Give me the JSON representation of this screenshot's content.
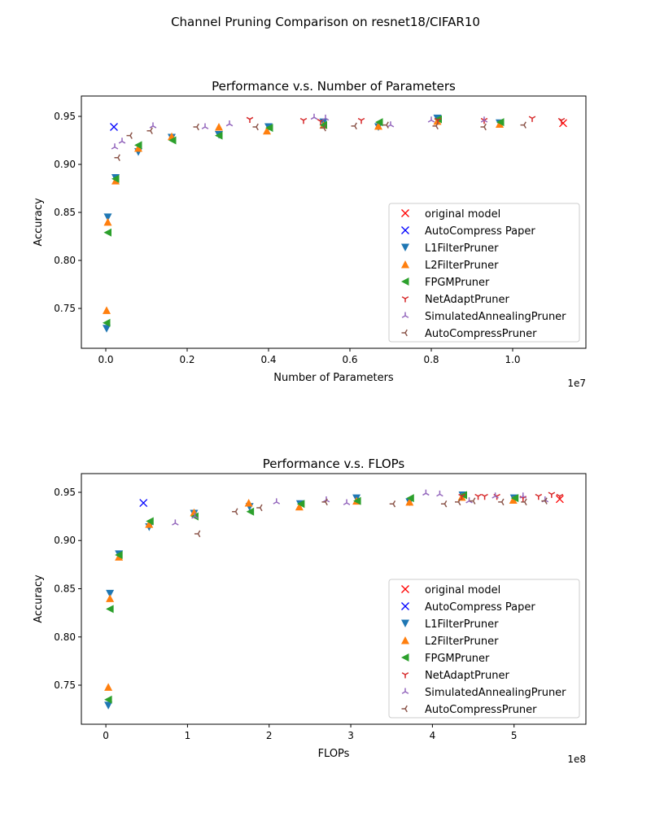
{
  "suptitle": "Channel Pruning Comparison on resnet18/CIFAR10",
  "legend_entries": [
    {
      "name": "original model",
      "marker": "x",
      "color": "#ff0000"
    },
    {
      "name": "AutoCompress Paper",
      "marker": "x",
      "color": "#0000ff"
    },
    {
      "name": "L1FilterPruner",
      "marker": "triangle_down",
      "color": "#1f77b4"
    },
    {
      "name": "L2FilterPruner",
      "marker": "triangle_up",
      "color": "#ff7f0e"
    },
    {
      "name": "FPGMPruner",
      "marker": "triangle_left",
      "color": "#2ca02c"
    },
    {
      "name": "NetAdaptPruner",
      "marker": "tri_down",
      "color": "#d62728"
    },
    {
      "name": "SimulatedAnnealingPruner",
      "marker": "tri_up",
      "color": "#9467bd"
    },
    {
      "name": "AutoCompressPruner",
      "marker": "tri_left",
      "color": "#8c564b"
    }
  ],
  "chart_data": [
    {
      "type": "scatter",
      "title": "Performance v.s. Number of Parameters",
      "xlabel": "Number of Parameters",
      "ylabel": "Accuracy",
      "x_scale_label": "1e7",
      "x_scale": 10000000,
      "xlim": [
        -600000,
        11800000
      ],
      "ylim": [
        0.7085,
        0.9712
      ],
      "xticks": [
        0,
        2000000,
        4000000,
        6000000,
        8000000,
        10000000
      ],
      "xtick_labels": [
        "0.0",
        "0.2",
        "0.4",
        "0.6",
        "0.8",
        "1.0"
      ],
      "yticks": [
        0.75,
        0.8,
        0.85,
        0.9,
        0.95
      ],
      "ytick_labels": [
        "0.75",
        "0.80",
        "0.85",
        "0.90",
        "0.95"
      ],
      "grid": false,
      "legend": "lower-right",
      "series": [
        {
          "name": "original model",
          "x": [
            11240000
          ],
          "y": [
            0.943
          ]
        },
        {
          "name": "AutoCompress Paper",
          "x": [
            200000
          ],
          "y": [
            0.939
          ]
        },
        {
          "name": "L1FilterPruner",
          "x": [
            20000,
            50000,
            240000,
            800000,
            1620000,
            2780000,
            4000000,
            5350000,
            6700000,
            8150000,
            9680000
          ],
          "y": [
            0.729,
            0.845,
            0.886,
            0.913,
            0.928,
            0.931,
            0.939,
            0.944,
            0.939,
            0.948,
            0.943
          ]
        },
        {
          "name": "L2FilterPruner",
          "x": [
            20000,
            50000,
            240000,
            800000,
            1620000,
            2780000,
            3960000,
            5350000,
            6700000,
            8150000,
            9680000
          ],
          "y": [
            0.748,
            0.84,
            0.883,
            0.917,
            0.929,
            0.939,
            0.935,
            0.941,
            0.94,
            0.945,
            0.942
          ]
        },
        {
          "name": "FPGMPruner",
          "x": [
            20000,
            50000,
            240000,
            800000,
            1640000,
            2780000,
            4020000,
            5350000,
            6720000,
            8170000,
            9700000
          ],
          "y": [
            0.735,
            0.829,
            0.885,
            0.92,
            0.925,
            0.93,
            0.938,
            0.941,
            0.944,
            0.947,
            0.944
          ]
        },
        {
          "name": "NetAdaptPruner",
          "x": [
            3540000,
            4860000,
            5280000,
            6280000,
            8160000,
            9300000,
            10480000,
            11200000
          ],
          "y": [
            0.947,
            0.946,
            0.945,
            0.946,
            0.946,
            0.946,
            0.948,
            0.946
          ]
        },
        {
          "name": "SimulatedAnnealingPruner",
          "x": [
            220000,
            400000,
            1160000,
            2440000,
            3040000,
            5120000,
            5400000,
            7000000,
            8000000,
            9300000
          ],
          "y": [
            0.918,
            0.924,
            0.94,
            0.939,
            0.942,
            0.949,
            0.948,
            0.941,
            0.946,
            0.946
          ]
        },
        {
          "name": "AutoCompressPruner",
          "x": [
            300000,
            600000,
            1100000,
            2240000,
            3700000,
            5360000,
            6120000,
            6900000,
            8120000,
            9300000,
            10280000
          ],
          "y": [
            0.907,
            0.93,
            0.935,
            0.939,
            0.939,
            0.938,
            0.94,
            0.941,
            0.94,
            0.939,
            0.941
          ]
        }
      ]
    },
    {
      "type": "scatter",
      "title": "Performance v.s. FLOPs",
      "xlabel": "FLOPs",
      "ylabel": "Accuracy",
      "x_scale_label": "1e8",
      "x_scale": 100000000,
      "xlim": [
        -30000000,
        588000000
      ],
      "ylim": [
        0.7095,
        0.9694
      ],
      "xticks": [
        0,
        100000000,
        200000000,
        300000000,
        400000000,
        500000000
      ],
      "xtick_labels": [
        "0",
        "1",
        "2",
        "3",
        "4",
        "5"
      ],
      "yticks": [
        0.75,
        0.8,
        0.85,
        0.9,
        0.95
      ],
      "ytick_labels": [
        "0.75",
        "0.80",
        "0.85",
        "0.90",
        "0.95"
      ],
      "grid": false,
      "legend": "lower-right",
      "series": [
        {
          "name": "original model",
          "x": [
            556000000
          ],
          "y": [
            0.943
          ]
        },
        {
          "name": "AutoCompress Paper",
          "x": [
            46000000
          ],
          "y": [
            0.939
          ]
        },
        {
          "name": "L1FilterPruner",
          "x": [
            3000000,
            5000000,
            16000000,
            53000000,
            108000000,
            176000000,
            238000000,
            307000000,
            372000000,
            437000000,
            500000000
          ],
          "y": [
            0.729,
            0.845,
            0.886,
            0.914,
            0.928,
            0.935,
            0.938,
            0.944,
            0.94,
            0.947,
            0.944
          ]
        },
        {
          "name": "L2FilterPruner",
          "x": [
            3000000,
            5000000,
            16000000,
            53000000,
            108000000,
            175000000,
            237000000,
            307000000,
            372000000,
            436000000,
            499000000
          ],
          "y": [
            0.748,
            0.84,
            0.883,
            0.917,
            0.929,
            0.939,
            0.935,
            0.941,
            0.94,
            0.945,
            0.942
          ]
        },
        {
          "name": "FPGMPruner",
          "x": [
            3000000,
            5000000,
            16000000,
            54000000,
            109000000,
            177000000,
            239000000,
            308000000,
            373000000,
            438000000,
            501000000
          ],
          "y": [
            0.735,
            0.829,
            0.885,
            0.92,
            0.925,
            0.93,
            0.938,
            0.941,
            0.944,
            0.947,
            0.944
          ]
        },
        {
          "name": "NetAdaptPruner",
          "x": [
            436000000,
            456000000,
            464000000,
            479000000,
            511000000,
            530000000,
            546000000,
            556000000
          ],
          "y": [
            0.946,
            0.946,
            0.946,
            0.946,
            0.944,
            0.946,
            0.948,
            0.946
          ]
        },
        {
          "name": "SimulatedAnnealingPruner",
          "x": [
            85000000,
            109000000,
            209000000,
            270000000,
            295000000,
            392000000,
            409000000,
            445000000,
            477000000,
            511000000,
            538000000
          ],
          "y": [
            0.918,
            0.925,
            0.94,
            0.942,
            0.939,
            0.949,
            0.948,
            0.941,
            0.946,
            0.946,
            0.942
          ]
        },
        {
          "name": "AutoCompressPruner",
          "x": [
            113000000,
            159000000,
            189000000,
            269000000,
            352000000,
            415000000,
            432000000,
            450000000,
            485000000,
            513000000,
            538000000
          ],
          "y": [
            0.907,
            0.93,
            0.934,
            0.94,
            0.938,
            0.938,
            0.94,
            0.941,
            0.94,
            0.94,
            0.941
          ]
        }
      ]
    }
  ]
}
